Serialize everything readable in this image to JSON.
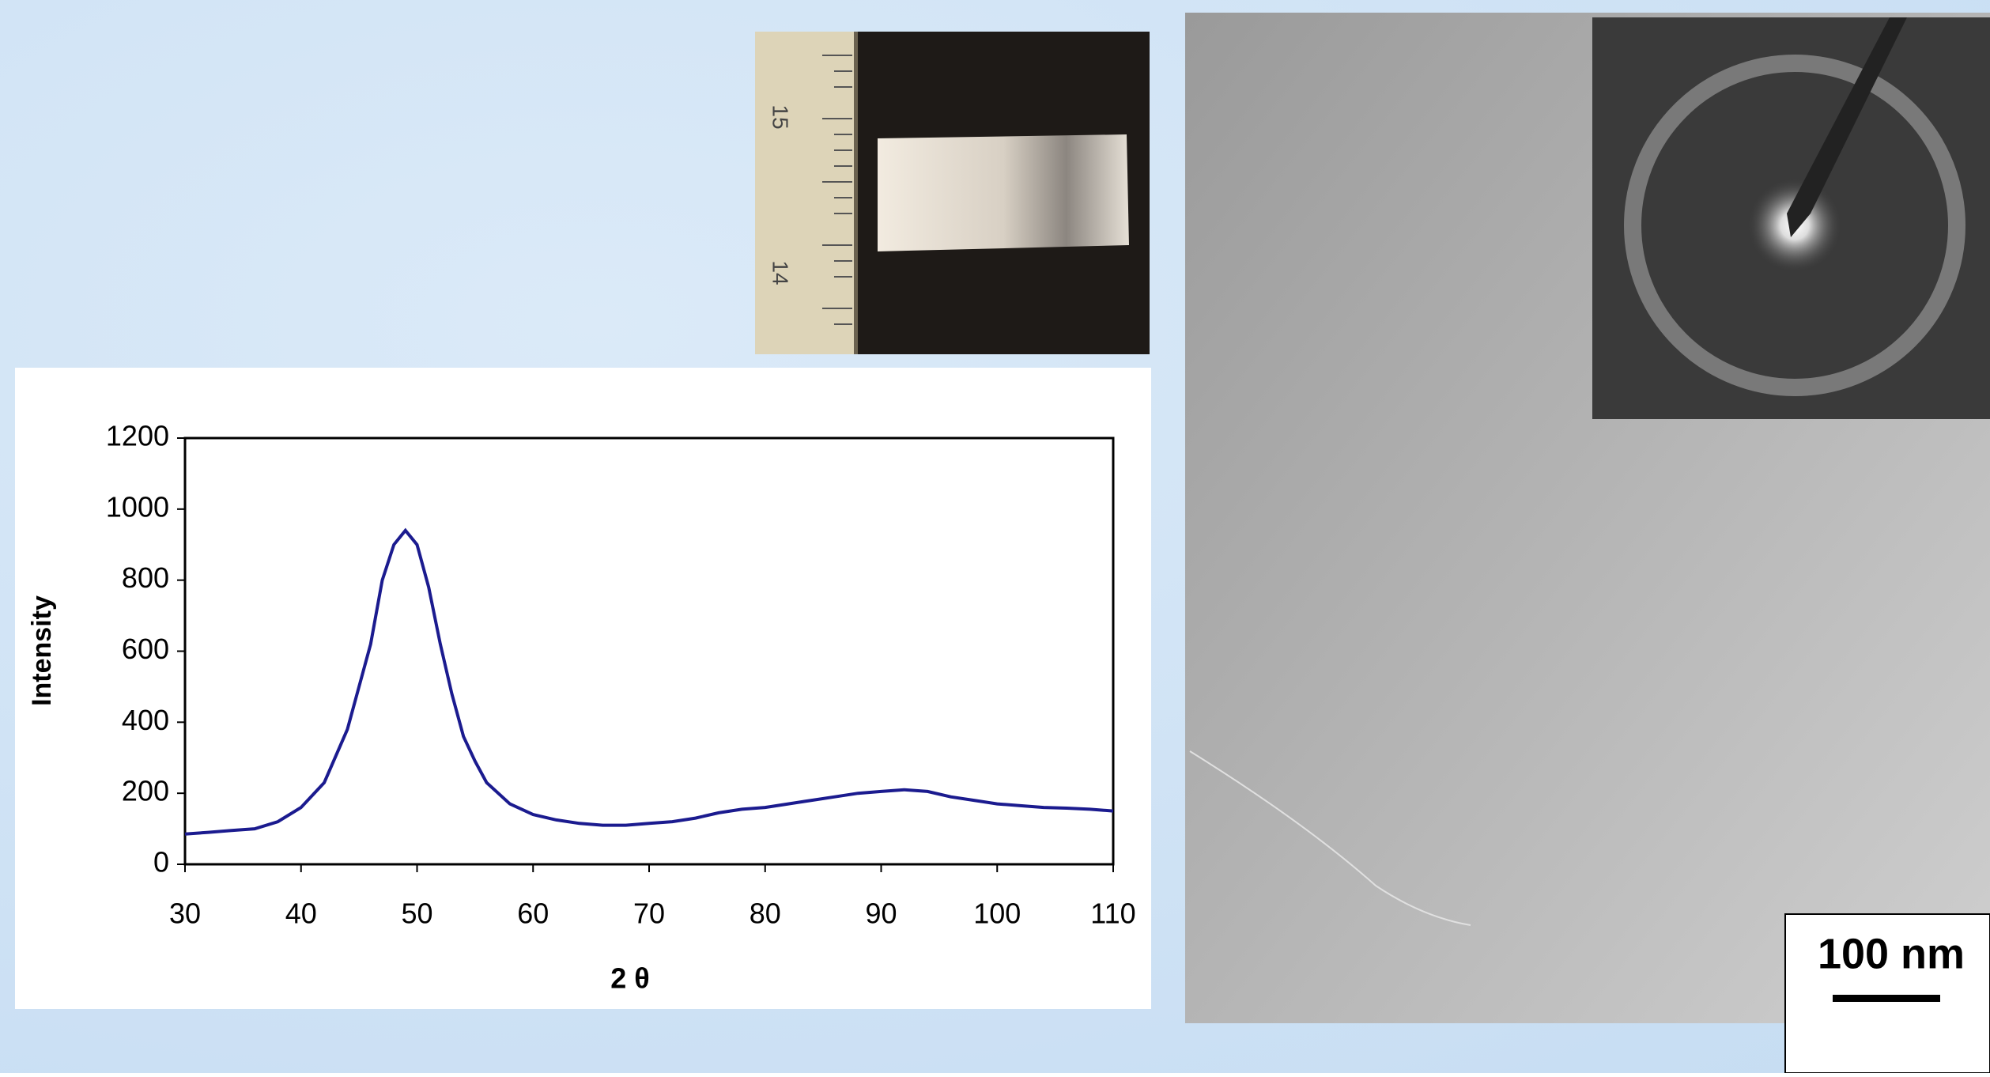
{
  "chart_data": {
    "type": "line",
    "x": [
      30,
      32,
      34,
      36,
      38,
      40,
      42,
      44,
      46,
      47,
      48,
      49,
      50,
      51,
      52,
      53,
      54,
      55,
      56,
      58,
      60,
      62,
      64,
      66,
      68,
      70,
      72,
      74,
      76,
      78,
      80,
      82,
      84,
      86,
      88,
      90,
      92,
      94,
      96,
      98,
      100,
      102,
      104,
      106,
      108,
      110
    ],
    "series": [
      {
        "color": "#1b1b8f",
        "values": [
          85,
          90,
          95,
          100,
          120,
          160,
          230,
          380,
          620,
          800,
          900,
          940,
          900,
          780,
          620,
          480,
          360,
          290,
          230,
          170,
          140,
          125,
          115,
          110,
          110,
          115,
          120,
          130,
          145,
          155,
          160,
          170,
          180,
          190,
          200,
          205,
          210,
          205,
          190,
          180,
          170,
          165,
          160,
          158,
          155,
          150
        ]
      }
    ],
    "x_label": "2 θ",
    "y_label": "Intensity",
    "xlim": [
      30,
      110
    ],
    "xticks": [
      30,
      40,
      50,
      60,
      70,
      80,
      90,
      100,
      110
    ],
    "ylim": [
      0,
      1200
    ],
    "yticks": [
      0,
      200,
      400,
      600,
      800,
      1000,
      1200
    ]
  },
  "ruler_labels": [
    "15",
    "14"
  ],
  "scale_bar": "100 nm"
}
